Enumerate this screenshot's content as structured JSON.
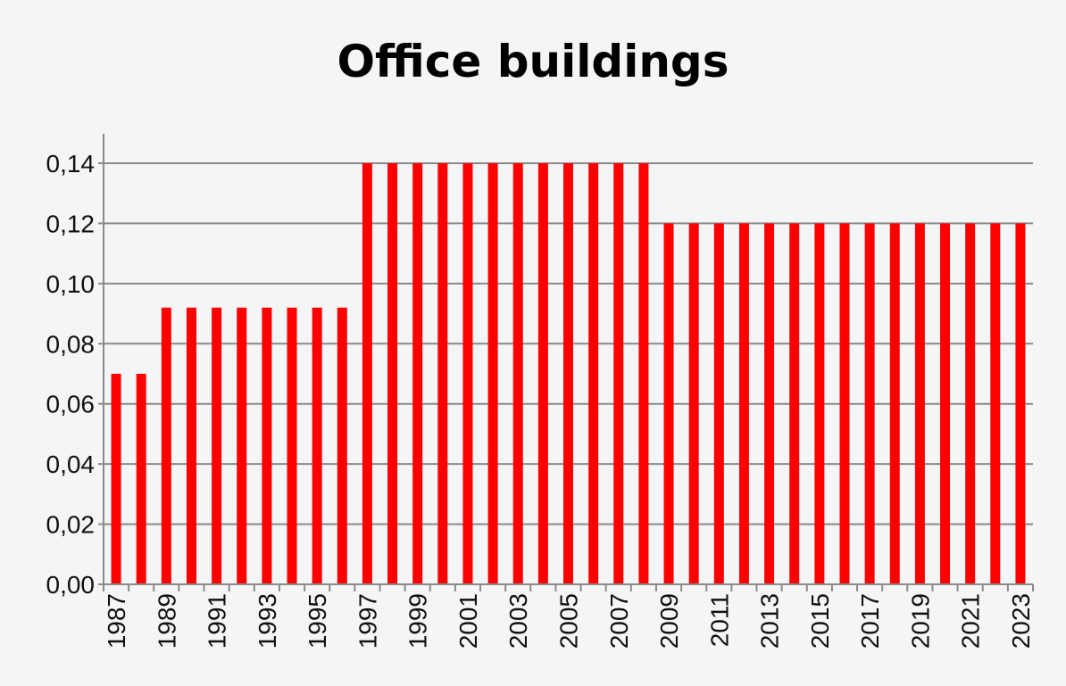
{
  "chart_data": {
    "type": "bar",
    "title": "Office buildings",
    "xlabel": "",
    "ylabel": "",
    "ylim": [
      0,
      0.15
    ],
    "y_ticks": [
      "0,00",
      "0,02",
      "0,04",
      "0,06",
      "0,08",
      "0,10",
      "0,12",
      "0,14"
    ],
    "y_tick_values": [
      0,
      0.02,
      0.04,
      0.06,
      0.08,
      0.1,
      0.12,
      0.14
    ],
    "grid": true,
    "bar_color": "#ff0000",
    "categories": [
      "1987",
      "1988",
      "1989",
      "1990",
      "1991",
      "1992",
      "1993",
      "1994",
      "1995",
      "1996",
      "1997",
      "1998",
      "1999",
      "2000",
      "2001",
      "2002",
      "2003",
      "2004",
      "2005",
      "2006",
      "2007",
      "2008",
      "2009",
      "2010",
      "2011",
      "2012",
      "2013",
      "2014",
      "2015",
      "2016",
      "2017",
      "2018",
      "2019",
      "2020",
      "2021",
      "2022",
      "2023"
    ],
    "x_tick_labels": [
      "1987",
      "1989",
      "1991",
      "1993",
      "1995",
      "1997",
      "1999",
      "2001",
      "2003",
      "2005",
      "2007",
      "2009",
      "2011",
      "2013",
      "2015",
      "2017",
      "2019",
      "2021",
      "2023"
    ],
    "values": [
      0.07,
      0.07,
      0.092,
      0.092,
      0.092,
      0.092,
      0.092,
      0.092,
      0.092,
      0.092,
      0.14,
      0.14,
      0.14,
      0.14,
      0.14,
      0.14,
      0.14,
      0.14,
      0.14,
      0.14,
      0.14,
      0.14,
      0.12,
      0.12,
      0.12,
      0.12,
      0.12,
      0.12,
      0.12,
      0.12,
      0.12,
      0.12,
      0.12,
      0.12,
      0.12,
      0.12,
      0.12
    ]
  }
}
